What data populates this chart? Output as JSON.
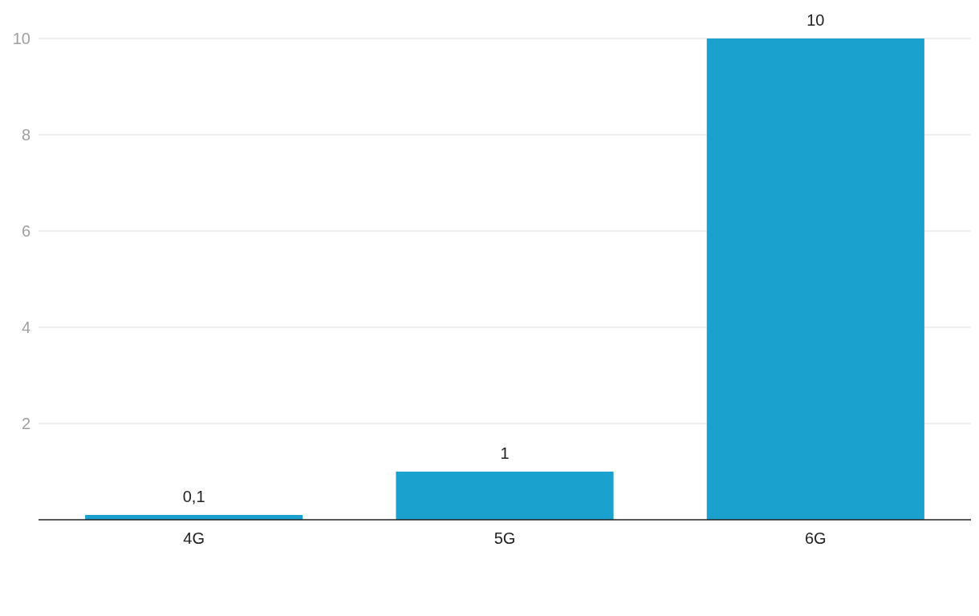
{
  "chart_data": {
    "type": "bar",
    "categories": [
      "4G",
      "5G",
      "6G"
    ],
    "values": [
      0.1,
      1,
      10
    ],
    "color": "#1aa1ce",
    "value_labels": [
      "0,1",
      "1",
      "10"
    ],
    "ylim": [
      0,
      10
    ],
    "yticks": [
      2,
      4,
      6,
      8,
      10
    ],
    "grid": "y"
  }
}
